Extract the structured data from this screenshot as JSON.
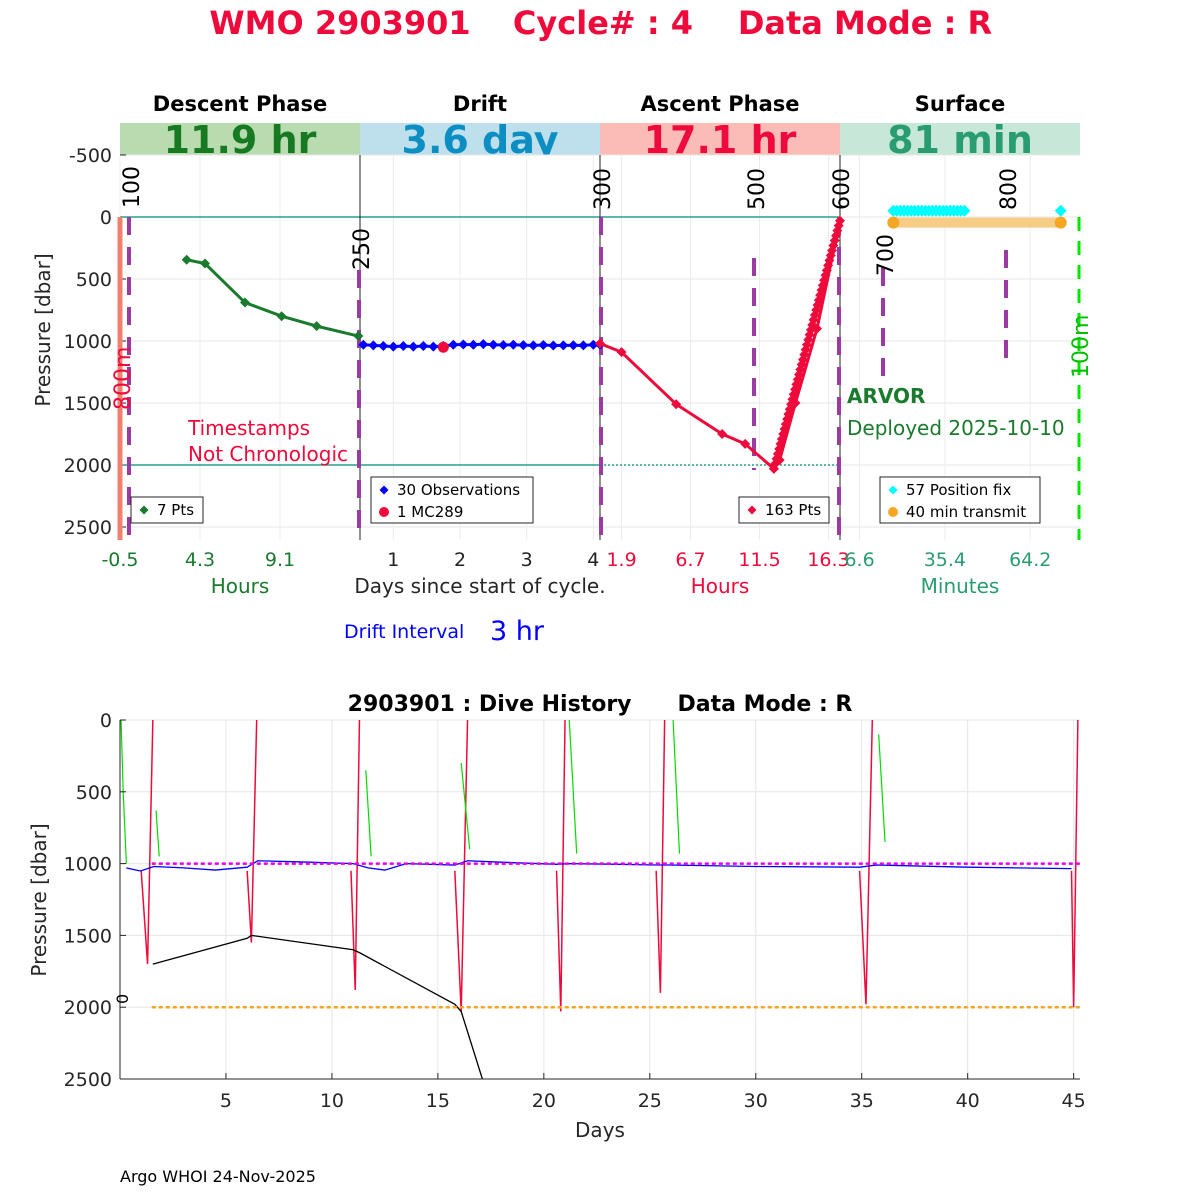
{
  "title": {
    "wmo": "WMO 2903901",
    "cycle": "Cycle# : 4",
    "mode": "Data Mode : R",
    "color": "#ee0a3a"
  },
  "colors": {
    "descent": "#1a7a2e",
    "drift": "#0000ff",
    "ascent": "#ee0a3a",
    "surface": "#2a9d70",
    "position_fix": "#00ffff",
    "transmit": "#f5a623",
    "purple": "#9b3aa0",
    "teal_line": "#2a9d8f",
    "magenta": "#e600e6",
    "orange_dash": "#f5a623",
    "green_dash": "#00e600"
  },
  "top_panel": {
    "ylabel": "Pressure [dbar]",
    "yticks": [
      "-500",
      "0",
      "500",
      "1000",
      "1500",
      "2000",
      "2500"
    ],
    "bottom_xlabel": "Days since start of cycle.",
    "drift_interval_label": "Drift Interval",
    "drift_interval_value": "3 hr",
    "phases": [
      {
        "key": "descent",
        "name": "Descent Phase",
        "duration": "11.9 hr",
        "band_color": "#b9dbb0",
        "text_color": "#177a22",
        "tick_color": "#1a7a2e",
        "xticks": [
          "-0.5",
          "4.3",
          "9.1"
        ],
        "unit_label": "Hours",
        "legend": [
          {
            "marker": "diamond",
            "color": "#1a7a2e",
            "label": "7 Pts"
          }
        ]
      },
      {
        "key": "drift",
        "name": "Drift",
        "duration": "3.6 day",
        "band_color": "#bde0ec",
        "text_color": "#0d8ec3",
        "tick_color": "#222222",
        "xticks": [
          "1",
          "2",
          "3",
          "4"
        ],
        "unit_label": "",
        "legend": [
          {
            "marker": "diamond",
            "color": "#0000ff",
            "label": "30 Observations"
          },
          {
            "marker": "circle",
            "color": "#ee0a3a",
            "label": "1 MC289"
          }
        ]
      },
      {
        "key": "ascent",
        "name": "Ascent Phase",
        "duration": "17.1 hr",
        "band_color": "#fbbcb6",
        "text_color": "#ee0a3a",
        "tick_color": "#ee0a3a",
        "xticks": [
          "1.9",
          "6.7",
          "11.5",
          "16.3"
        ],
        "unit_label": "Hours",
        "legend": [
          {
            "marker": "diamond",
            "color": "#ee0a3a",
            "label": "163 Pts"
          }
        ]
      },
      {
        "key": "surface",
        "name": "Surface",
        "duration": "81 min",
        "band_color": "#c7e8d9",
        "text_color": "#2a9d70",
        "tick_color": "#2a9d70",
        "xticks": [
          "6.6",
          "35.4",
          "64.2"
        ],
        "unit_label": "Minutes",
        "legend": [
          {
            "marker": "diamond",
            "color": "#00ffff",
            "label": "57 Position fix"
          },
          {
            "marker": "circle",
            "color": "#f5a623",
            "label": "40 min transmit"
          }
        ]
      }
    ],
    "markers": [
      "100",
      "250",
      "300",
      "500",
      "600",
      "700",
      "800"
    ],
    "side_labels": {
      "left": "800m",
      "right": "100m"
    },
    "note": [
      "Timestamps",
      "Not Chronologic"
    ],
    "platform": "ARVOR",
    "deployed": "Deployed 2025-10-10"
  },
  "chart_data": [
    {
      "type": "line",
      "panel": "descent",
      "xlabel": "Hours",
      "ylabel": "Pressure [dbar]",
      "x": [
        3.5,
        4.6,
        7.0,
        9.2,
        11.3,
        13.8
      ],
      "y": [
        345,
        375,
        690,
        800,
        880,
        960
      ],
      "xlim": [
        -0.5,
        13.9
      ],
      "ylim": [
        2600,
        -750
      ]
    },
    {
      "type": "line",
      "panel": "drift",
      "xlabel": "Days since start of cycle.",
      "x": [
        0.55,
        0.7,
        0.85,
        1.0,
        1.15,
        1.3,
        1.45,
        1.6,
        1.75,
        1.9,
        2.05,
        2.2,
        2.35,
        2.5,
        2.65,
        2.8,
        2.95,
        3.1,
        3.25,
        3.4,
        3.55,
        3.7,
        3.85,
        4.0,
        4.1
      ],
      "y": [
        1030,
        1035,
        1040,
        1045,
        1040,
        1045,
        1040,
        1045,
        1040,
        1030,
        1028,
        1030,
        1025,
        1030,
        1032,
        1030,
        1033,
        1035,
        1032,
        1036,
        1035,
        1034,
        1035,
        1030,
        1030
      ],
      "mc289": {
        "x": 1.75,
        "y": 1050
      },
      "xlim": [
        0.5,
        4.1
      ],
      "ylim": [
        2600,
        -750
      ]
    },
    {
      "type": "line",
      "panel": "ascent",
      "xlabel": "Hours",
      "x": [
        0.4,
        1.9,
        5.7,
        8.9,
        10.5,
        12.5,
        12.9,
        14.0,
        15.5,
        17.1
      ],
      "y": [
        1020,
        1090,
        1510,
        1750,
        1830,
        2030,
        1960,
        1500,
        900,
        30
      ],
      "xlim": [
        0.4,
        17.1
      ],
      "ylim": [
        2600,
        -750
      ]
    },
    {
      "type": "scatter",
      "panel": "surface",
      "xlabel": "Minutes",
      "position_fix": {
        "x_range": [
          18,
          43
        ],
        "x_last": 74.5,
        "y": -50
      },
      "transmit": {
        "x_range": [
          18,
          74.5
        ],
        "y": 45
      },
      "xlim": [
        0,
        81
      ],
      "ylim": [
        2600,
        -750
      ]
    },
    {
      "type": "line",
      "title": "2903901 : Dive History      Data Mode : R",
      "xlabel": "Days",
      "ylabel": "Pressure [dbar]",
      "xlim": [
        0,
        45.3
      ],
      "ylim": [
        2500,
        0
      ],
      "xticks": [
        5,
        10,
        15,
        20,
        25,
        30,
        35,
        40,
        45
      ],
      "yticks": [
        0,
        500,
        1000,
        1500,
        2000,
        2500
      ],
      "series": [
        {
          "key": "ascent",
          "color": "#ee0a3a",
          "x": [
            1.0,
            1.3,
            1.55,
            6.0,
            6.2,
            6.45,
            10.9,
            11.1,
            11.3,
            15.8,
            16.1,
            16.4,
            20.6,
            20.8,
            21.0,
            25.3,
            25.5,
            25.7,
            34.9,
            35.2,
            35.5,
            44.9,
            45.0,
            45.2
          ],
          "y": [
            1050,
            1700,
            0,
            1050,
            1550,
            0,
            1050,
            1880,
            0,
            1050,
            2030,
            0,
            1050,
            2030,
            0,
            1050,
            1900,
            0,
            1050,
            1980,
            0,
            1050,
            2000,
            0
          ]
        },
        {
          "key": "descent",
          "color": "#00dd00",
          "x": [
            0.05,
            0.15,
            0.3,
            1.7,
            1.85,
            11.6,
            11.85,
            16.1,
            16.5,
            21.2,
            21.55,
            26.1,
            26.4,
            35.8,
            36.1
          ],
          "y": [
            0,
            500,
            1000,
            630,
            950,
            350,
            950,
            300,
            900,
            0,
            930,
            0,
            930,
            100,
            850
          ]
        },
        {
          "key": "drift",
          "color": "#0000ff",
          "x": [
            0.3,
            0.9,
            1.0,
            1.6,
            3.0,
            4.5,
            6.0,
            6.5,
            9.0,
            11.0,
            11.7,
            12.5,
            13.5,
            15.8,
            16.4,
            18.0,
            20.6,
            21.2,
            23.5,
            25.3,
            25.9,
            30.0,
            34.9,
            35.7,
            40.0,
            44.9
          ],
          "y": [
            1030,
            1050,
            1050,
            1020,
            1030,
            1045,
            1025,
            980,
            990,
            1000,
            1030,
            1045,
            1000,
            1010,
            980,
            990,
            1005,
            1000,
            1005,
            1010,
            1010,
            1020,
            1025,
            1010,
            1025,
            1035
          ]
        },
        {
          "key": "black",
          "color": "#000000",
          "x": [
            1.55,
            6.0,
            6.2,
            11.0,
            11.3,
            15.8,
            16.1,
            17.1
          ],
          "y": [
            1700,
            1520,
            1500,
            1600,
            1620,
            1980,
            2030,
            2500
          ]
        },
        {
          "key": "magenta_dash",
          "color": "#e600e6",
          "dashed": true,
          "x": [
            1.5,
            45.3
          ],
          "y": [
            1000,
            1000
          ]
        },
        {
          "key": "orange_dash",
          "color": "#f5a623",
          "dashed": true,
          "x": [
            1.5,
            45.3
          ],
          "y": [
            2000,
            2000
          ]
        }
      ],
      "side_label": "0"
    }
  ],
  "footer": "Argo WHOI 24-Nov-2025"
}
